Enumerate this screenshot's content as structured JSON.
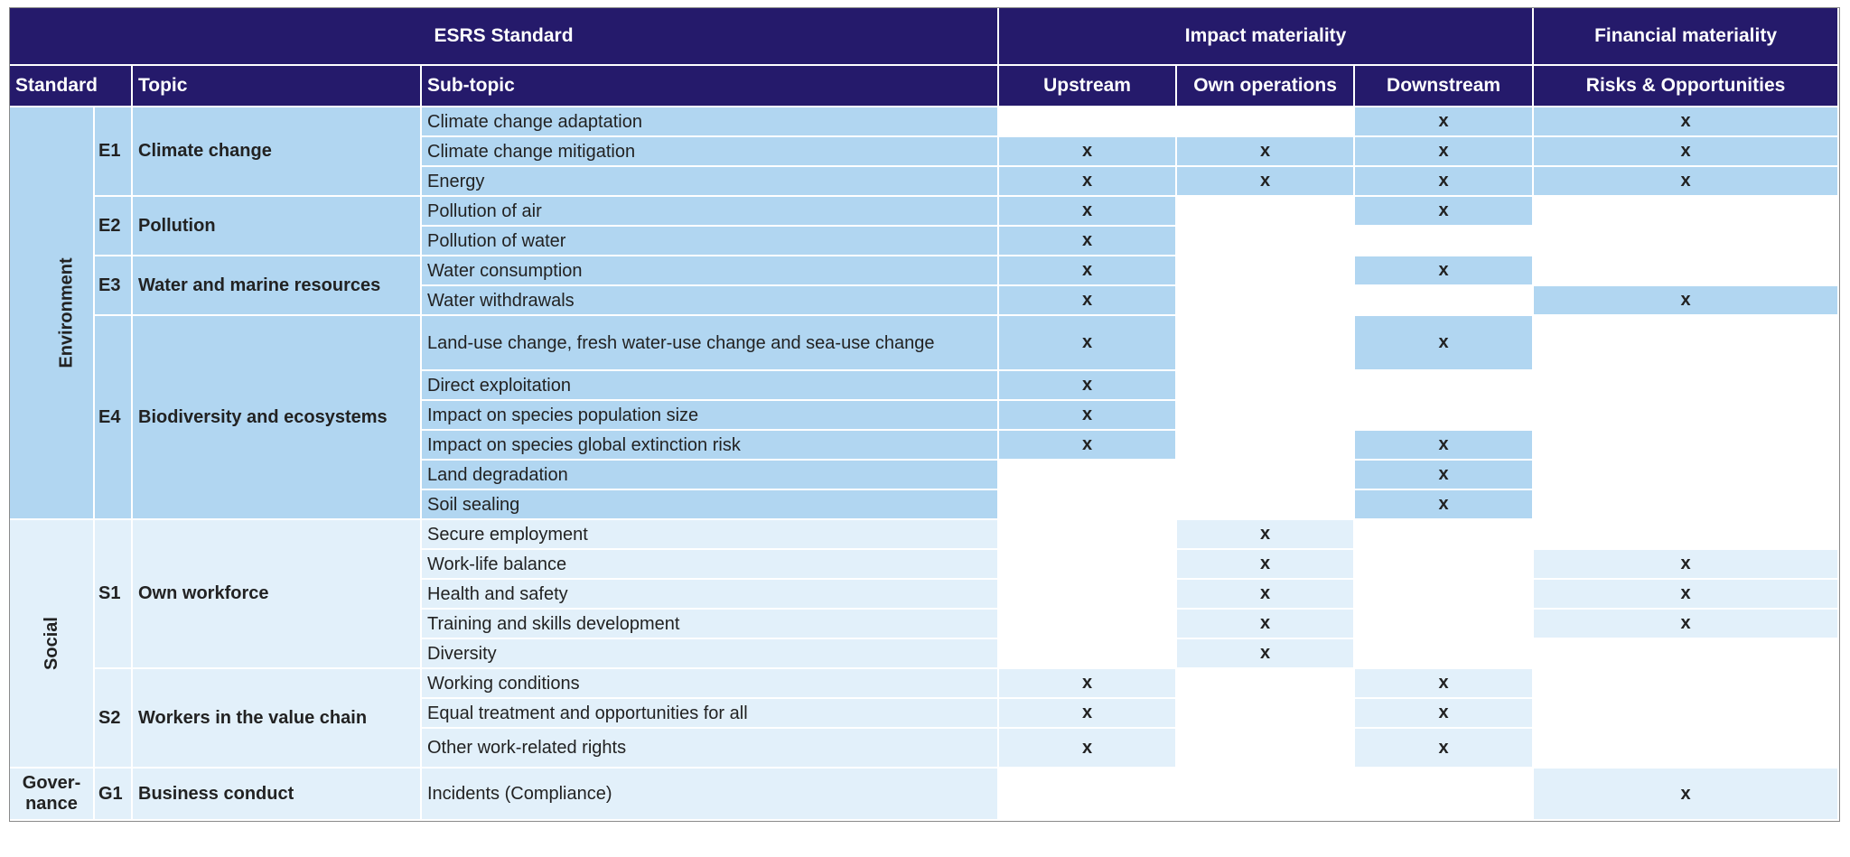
{
  "header": {
    "group_titles": [
      "ESRS Standard",
      "Impact materiality",
      "Financial materiality"
    ],
    "columns": [
      "Standard",
      "Topic",
      "Sub-topic",
      "Upstream",
      "Own operations",
      "Downstream",
      "Risks & Opportunities"
    ]
  },
  "sections": [
    {
      "name": "Environment",
      "topics": [
        {
          "code": "E1",
          "name": "Climate change",
          "subtopics": [
            {
              "name": "Climate change adaptation",
              "marks": [
                null,
                null,
                "x",
                "x"
              ]
            },
            {
              "name": "Climate change mitigation",
              "marks": [
                "x",
                "x",
                "x",
                "x"
              ]
            },
            {
              "name": "Energy",
              "marks": [
                "x",
                "x",
                "x",
                "x"
              ]
            }
          ]
        },
        {
          "code": "E2",
          "name": "Pollution",
          "subtopics": [
            {
              "name": "Pollution of air",
              "marks": [
                "x",
                null,
                "x",
                null
              ]
            },
            {
              "name": "Pollution of water",
              "marks": [
                "x",
                null,
                null,
                null
              ]
            }
          ]
        },
        {
          "code": "E3",
          "name": "Water and marine resources",
          "subtopics": [
            {
              "name": "Water consumption",
              "marks": [
                "x",
                null,
                "x",
                null
              ]
            },
            {
              "name": "Water withdrawals",
              "marks": [
                "x",
                null,
                null,
                "x"
              ]
            }
          ]
        },
        {
          "code": "E4",
          "name": "Biodiversity and ecosystems",
          "subtopics": [
            {
              "name": "Land-use change, fresh water-use change and sea-use change",
              "marks": [
                "x",
                null,
                "x",
                null
              ]
            },
            {
              "name": "Direct exploitation",
              "marks": [
                "x",
                null,
                null,
                null
              ]
            },
            {
              "name": "Impact on species population size",
              "marks": [
                "x",
                null,
                null,
                null
              ]
            },
            {
              "name": "Impact on species global extinction risk",
              "marks": [
                "x",
                null,
                "x",
                null
              ]
            },
            {
              "name": "Land degradation",
              "marks": [
                null,
                null,
                "x",
                null
              ]
            },
            {
              "name": "Soil sealing",
              "marks": [
                null,
                null,
                "x",
                null
              ]
            }
          ]
        }
      ]
    },
    {
      "name": "Social",
      "topics": [
        {
          "code": "S1",
          "name": "Own workforce",
          "subtopics": [
            {
              "name": "Secure employment",
              "marks": [
                null,
                "x",
                null,
                null
              ]
            },
            {
              "name": "Work-life balance",
              "marks": [
                null,
                "x",
                null,
                "x"
              ]
            },
            {
              "name": "Health and safety",
              "marks": [
                null,
                "x",
                null,
                "x"
              ]
            },
            {
              "name": "Training and skills development",
              "marks": [
                null,
                "x",
                null,
                "x"
              ]
            },
            {
              "name": "Diversity",
              "marks": [
                null,
                "x",
                null,
                null
              ]
            }
          ]
        },
        {
          "code": "S2",
          "name": "Workers in the value chain",
          "subtopics": [
            {
              "name": "Working conditions",
              "marks": [
                "x",
                null,
                "x",
                null
              ]
            },
            {
              "name": "Equal treatment and opportunities for all",
              "marks": [
                "x",
                null,
                "x",
                null
              ]
            },
            {
              "name": "Other work-related rights",
              "marks": [
                "x",
                null,
                "x",
                null
              ]
            }
          ]
        }
      ]
    },
    {
      "name": "Gover-nance",
      "topics": [
        {
          "code": "G1",
          "name": "Business conduct",
          "subtopics": [
            {
              "name": "Incidents (Compliance)",
              "marks": [
                null,
                null,
                null,
                "x"
              ]
            }
          ]
        }
      ]
    }
  ]
}
